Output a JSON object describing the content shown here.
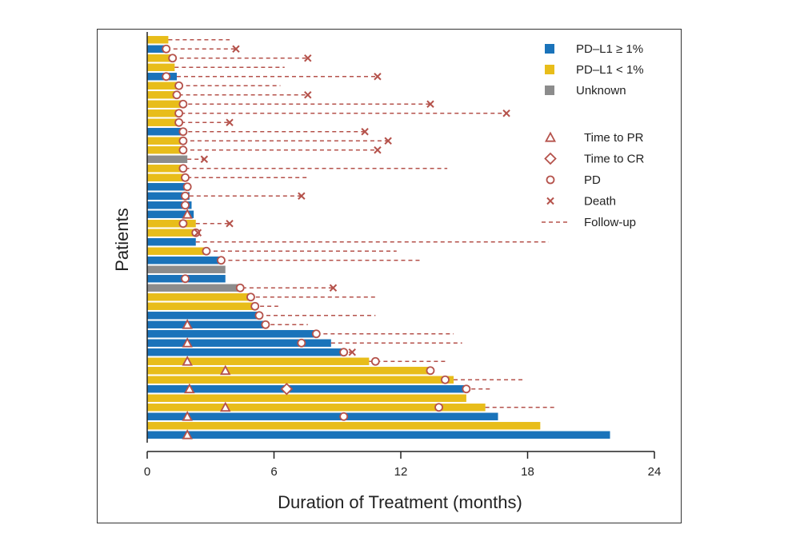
{
  "chart_data": {
    "type": "swimmer",
    "title": "",
    "xlabel": "Duration of Treatment (months)",
    "ylabel": "Patients",
    "xlim": [
      0,
      24
    ],
    "xticks": [
      0,
      6,
      12,
      18,
      24
    ],
    "legend_position": "top-right",
    "colors": {
      "PD-L1 ≥ 1%": "#1a73ba",
      "PD-L1 < 1%": "#e8bd1a",
      "Unknown": "#8c8c8c",
      "marker": "#b5524b"
    },
    "legend": {
      "groups": [
        {
          "label": "PD–L1 ≥ 1%",
          "key": "PD-L1 ≥ 1%"
        },
        {
          "label": "PD–L1 < 1%",
          "key": "PD-L1 < 1%"
        },
        {
          "label": "Unknown",
          "key": "Unknown"
        }
      ],
      "markers": [
        {
          "label": "Time to PR",
          "symbol": "triangle"
        },
        {
          "label": "Time to CR",
          "symbol": "diamond"
        },
        {
          "label": "PD",
          "symbol": "circle"
        },
        {
          "label": "Death",
          "symbol": "x"
        },
        {
          "label": "Follow-up",
          "symbol": "dash"
        }
      ]
    },
    "patients": [
      {
        "group": "PD-L1 < 1%",
        "duration": 1.0,
        "followup_end": 3.9
      },
      {
        "group": "PD-L1 ≥ 1%",
        "duration": 0.9,
        "pd": 0.9,
        "followup_end": 4.2,
        "death": 4.2
      },
      {
        "group": "PD-L1 < 1%",
        "duration": 1.2,
        "pd": 1.2,
        "followup_end": 7.6,
        "death": 7.6
      },
      {
        "group": "PD-L1 < 1%",
        "duration": 1.3,
        "followup_end": 6.5
      },
      {
        "group": "PD-L1 ≥ 1%",
        "duration": 1.4,
        "pd": 0.9,
        "followup_end": 10.9,
        "death": 10.9
      },
      {
        "group": "PD-L1 < 1%",
        "duration": 1.5,
        "pd": 1.5,
        "followup_end": 6.3
      },
      {
        "group": "PD-L1 < 1%",
        "duration": 1.5,
        "pd": 1.4,
        "followup_end": 7.6,
        "death": 7.6
      },
      {
        "group": "PD-L1 < 1%",
        "duration": 1.6,
        "pd": 1.7,
        "followup_end": 13.4,
        "death": 13.4
      },
      {
        "group": "PD-L1 < 1%",
        "duration": 1.6,
        "pd": 1.5,
        "followup_end": 17.0,
        "death": 17.0
      },
      {
        "group": "PD-L1 < 1%",
        "duration": 1.6,
        "pd": 1.5,
        "followup_end": 3.9,
        "death": 3.9
      },
      {
        "group": "PD-L1 ≥ 1%",
        "duration": 1.6,
        "pd": 1.7,
        "followup_end": 10.3,
        "death": 10.3
      },
      {
        "group": "PD-L1 < 1%",
        "duration": 1.7,
        "pd": 1.7,
        "followup_end": 11.4,
        "death": 11.4
      },
      {
        "group": "PD-L1 < 1%",
        "duration": 1.7,
        "pd": 1.7,
        "followup_end": 10.9,
        "death": 10.9
      },
      {
        "group": "Unknown",
        "duration": 1.9,
        "followup_end": 2.7,
        "death": 2.7
      },
      {
        "group": "PD-L1 < 1%",
        "duration": 1.8,
        "pd": 1.7,
        "followup_end": 14.2
      },
      {
        "group": "PD-L1 < 1%",
        "duration": 1.9,
        "pd": 1.8,
        "followup_end": 7.6
      },
      {
        "group": "PD-L1 ≥ 1%",
        "duration": 2.0,
        "pd": 1.9,
        "followup_end": 2.0
      },
      {
        "group": "PD-L1 ≥ 1%",
        "duration": 2.0,
        "pd": 1.8,
        "followup_end": 7.3,
        "death": 7.3
      },
      {
        "group": "PD-L1 ≥ 1%",
        "duration": 2.1,
        "pd": 1.8,
        "followup_end": 2.1
      },
      {
        "group": "PD-L1 ≥ 1%",
        "duration": 2.2,
        "pr": 1.9,
        "followup_end": 2.2
      },
      {
        "group": "PD-L1 < 1%",
        "duration": 2.3,
        "pd": 1.7,
        "followup_end": 3.9,
        "death": 3.9
      },
      {
        "group": "PD-L1 < 1%",
        "duration": 2.4,
        "pd": 2.3,
        "followup_end": 2.4,
        "death": 2.4
      },
      {
        "group": "PD-L1 ≥ 1%",
        "duration": 2.3,
        "followup_end": 19.0
      },
      {
        "group": "PD-L1 < 1%",
        "duration": 2.8,
        "pd": 2.8,
        "followup_end": 11.8
      },
      {
        "group": "PD-L1 ≥ 1%",
        "duration": 3.5,
        "pd": 3.5,
        "followup_end": 13.0
      },
      {
        "group": "Unknown",
        "duration": 3.7,
        "followup_end": 3.7
      },
      {
        "group": "PD-L1 ≥ 1%",
        "duration": 3.7,
        "pd": 1.8,
        "followup_end": 3.7
      },
      {
        "group": "Unknown",
        "duration": 4.5,
        "pd": 4.4,
        "followup_end": 8.8,
        "death": 8.8
      },
      {
        "group": "PD-L1 < 1%",
        "duration": 4.8,
        "pd": 4.9,
        "followup_end": 10.9
      },
      {
        "group": "PD-L1 < 1%",
        "duration": 5.0,
        "pd": 5.1,
        "followup_end": 6.2
      },
      {
        "group": "PD-L1 ≥ 1%",
        "duration": 5.3,
        "pd": 5.3,
        "followup_end": 10.8
      },
      {
        "group": "PD-L1 ≥ 1%",
        "duration": 5.5,
        "pd": 5.6,
        "pr": 1.9,
        "followup_end": 7.6
      },
      {
        "group": "PD-L1 ≥ 1%",
        "duration": 8.0,
        "pd": 8.0,
        "followup_end": 14.5
      },
      {
        "group": "PD-L1 ≥ 1%",
        "duration": 8.7,
        "pd": 7.3,
        "pr": 1.9,
        "followup_end": 14.9
      },
      {
        "group": "PD-L1 ≥ 1%",
        "duration": 9.2,
        "pd": 9.3,
        "followup_end": 9.7,
        "death": 9.7
      },
      {
        "group": "PD-L1 < 1%",
        "duration": 10.5,
        "pd": 10.8,
        "pr": 1.9,
        "followup_end": 14.2
      },
      {
        "group": "PD-L1 < 1%",
        "duration": 13.3,
        "pd": 13.4,
        "pr": 3.7,
        "followup_end": 13.4
      },
      {
        "group": "PD-L1 < 1%",
        "duration": 14.5,
        "pd": 14.1,
        "followup_end": 17.9
      },
      {
        "group": "PD-L1 ≥ 1%",
        "duration": 15.0,
        "pd": 15.1,
        "pr": 2.0,
        "cr": 6.6,
        "followup_end": 16.3
      },
      {
        "group": "PD-L1 < 1%",
        "duration": 15.1,
        "followup_end": 15.1
      },
      {
        "group": "PD-L1 < 1%",
        "duration": 16.0,
        "pd": 13.8,
        "pr": 3.7,
        "followup_end": 19.4
      },
      {
        "group": "PD-L1 ≥ 1%",
        "duration": 16.6,
        "pd": 9.3,
        "pr": 1.9,
        "followup_end": 16.6
      },
      {
        "group": "PD-L1 < 1%",
        "duration": 18.6,
        "followup_end": 18.6
      },
      {
        "group": "PD-L1 ≥ 1%",
        "duration": 21.9,
        "pr": 1.9,
        "followup_end": 21.9
      }
    ]
  }
}
